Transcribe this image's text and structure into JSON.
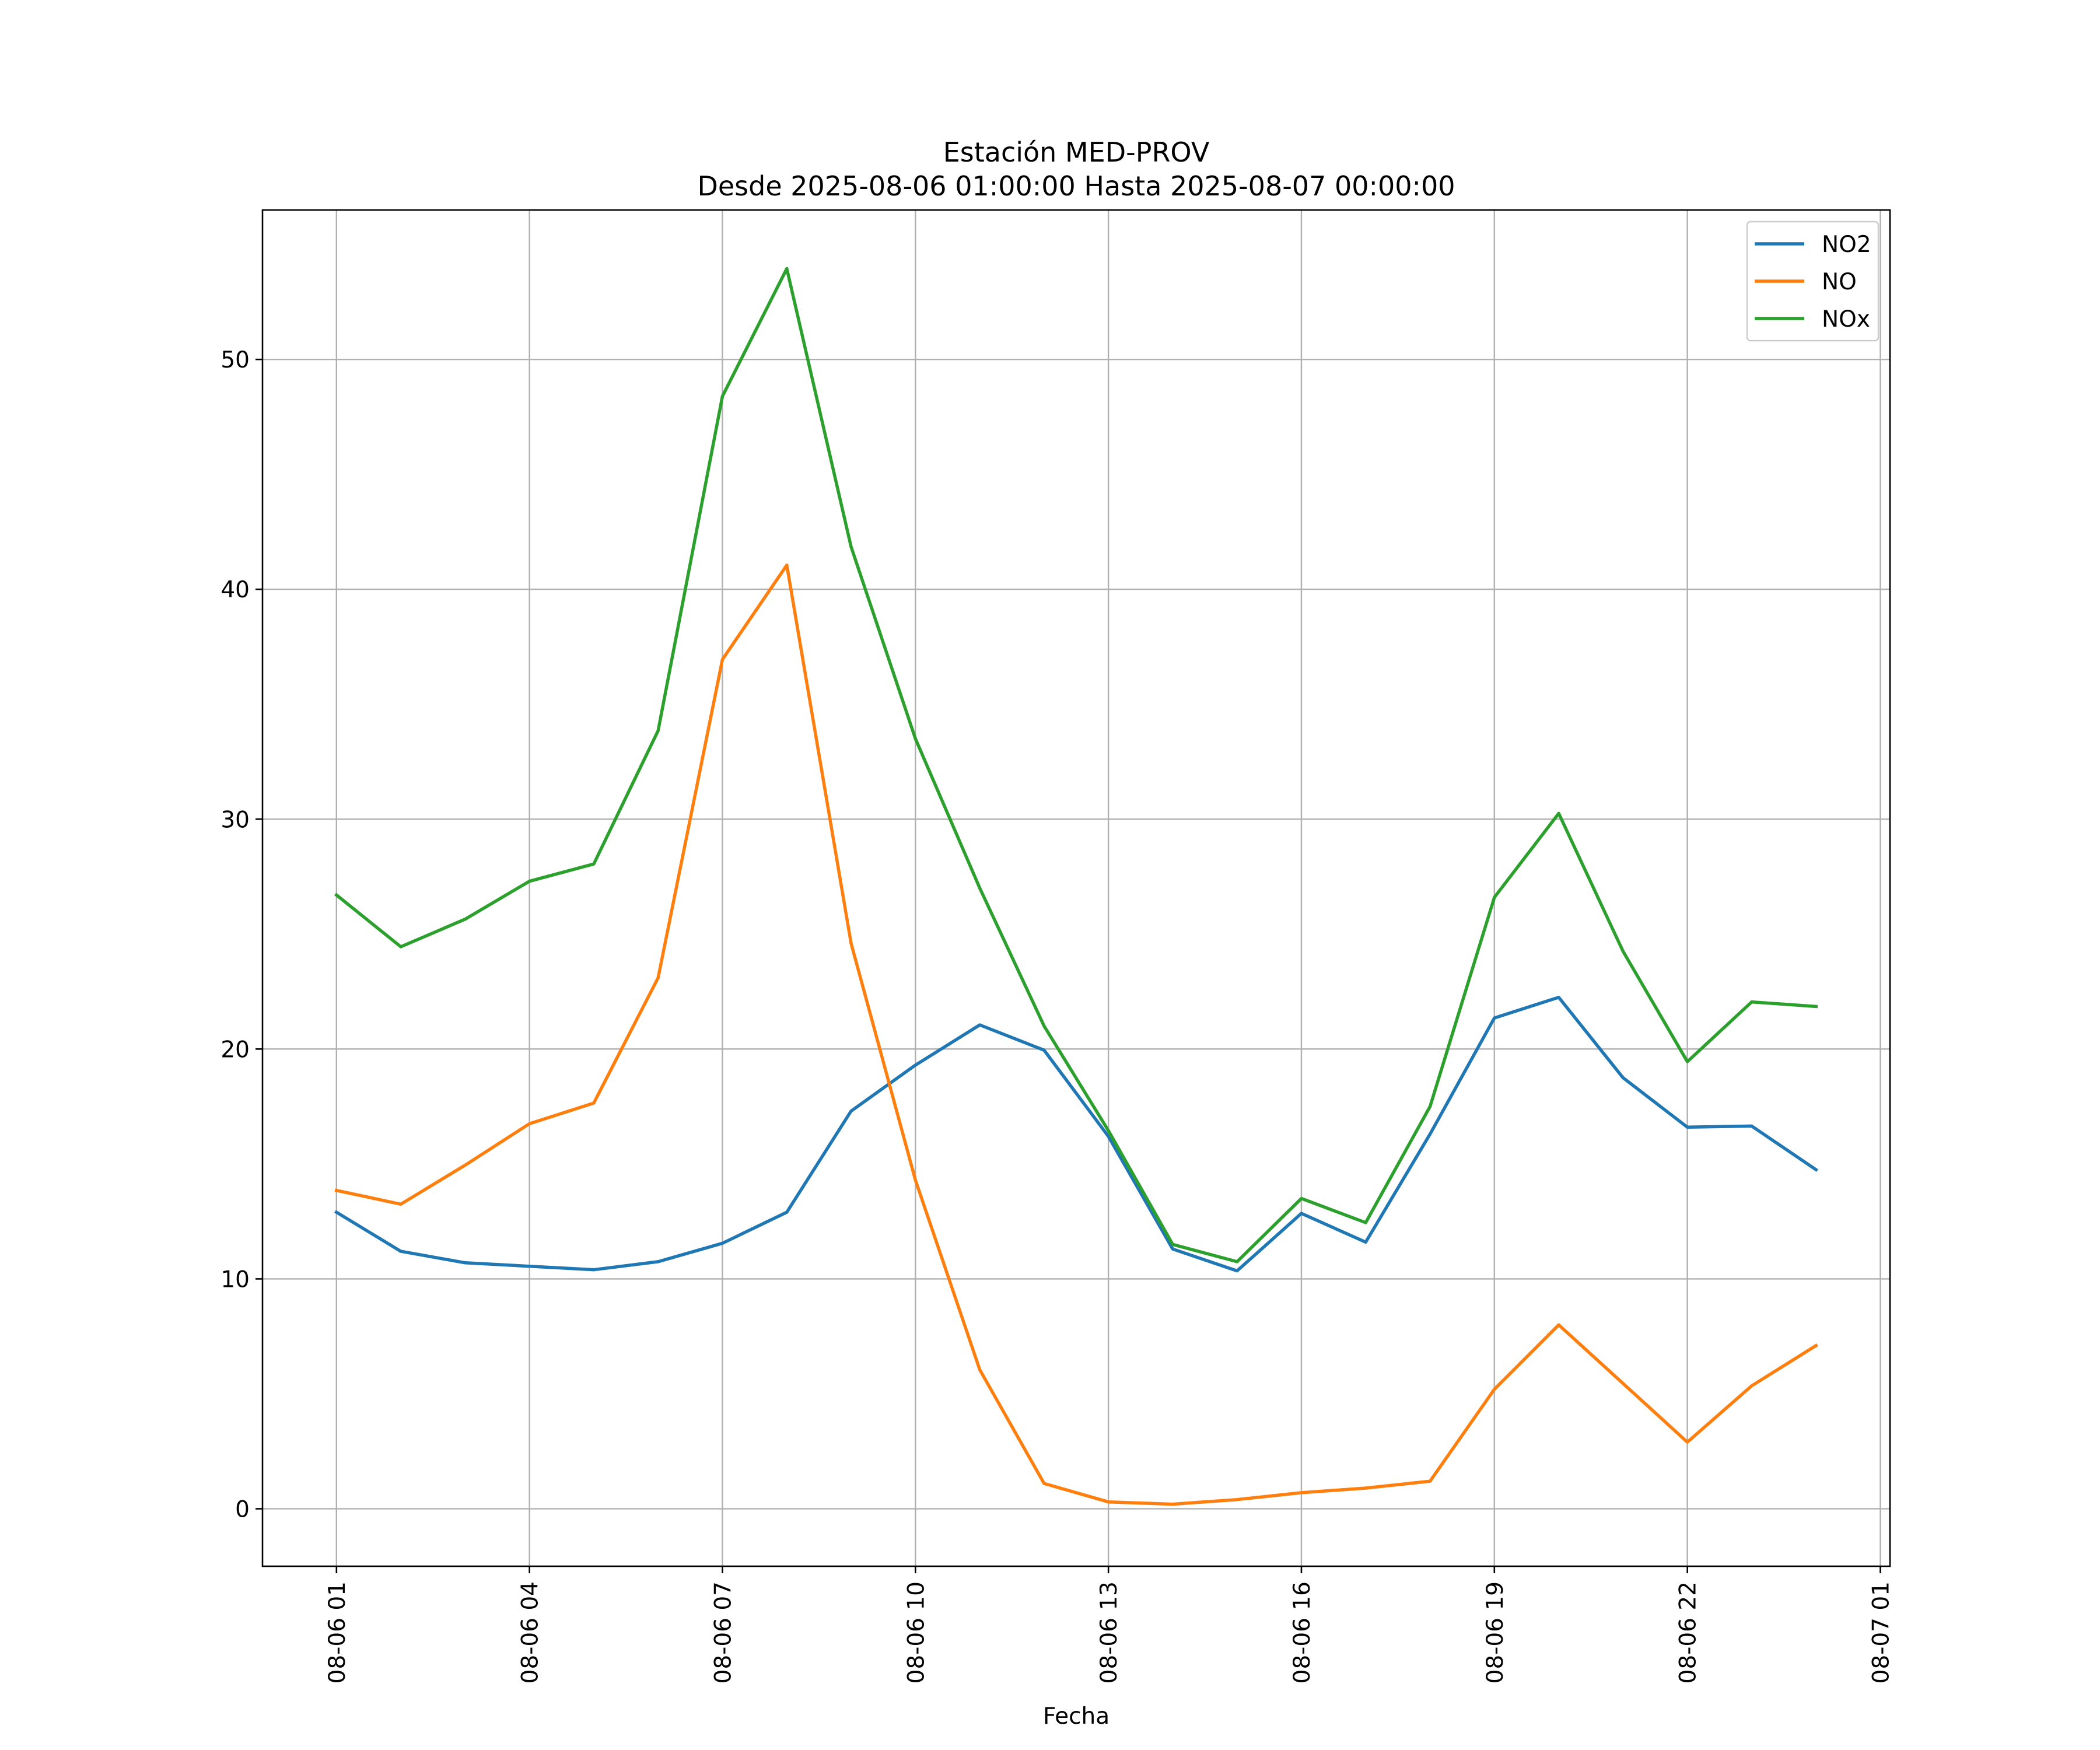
{
  "chart_data": {
    "type": "line",
    "title": "Estación MED-PROV",
    "subtitle": "Desde 2025-08-06 01:00:00 Hasta 2025-08-07 00:00:00",
    "xlabel": "Fecha",
    "ylabel": "",
    "x": [
      "08-06 01",
      "08-06 02",
      "08-06 03",
      "08-06 04",
      "08-06 05",
      "08-06 06",
      "08-06 07",
      "08-06 08",
      "08-06 09",
      "08-06 10",
      "08-06 11",
      "08-06 12",
      "08-06 13",
      "08-06 14",
      "08-06 15",
      "08-06 16",
      "08-06 17",
      "08-06 18",
      "08-06 19",
      "08-06 20",
      "08-06 21",
      "08-06 22",
      "08-06 23",
      "08-07 00"
    ],
    "x_hours": [
      1,
      2,
      3,
      4,
      5,
      6,
      7,
      8,
      9,
      10,
      11,
      12,
      13,
      14,
      15,
      16,
      17,
      18,
      19,
      20,
      21,
      22,
      23,
      24
    ],
    "xlim_hours": [
      -0.15,
      25.15
    ],
    "xticks": [
      {
        "hour": 1,
        "label": "08-06 01"
      },
      {
        "hour": 4,
        "label": "08-06 04"
      },
      {
        "hour": 7,
        "label": "08-06 07"
      },
      {
        "hour": 10,
        "label": "08-06 10"
      },
      {
        "hour": 13,
        "label": "08-06 13"
      },
      {
        "hour": 16,
        "label": "08-06 16"
      },
      {
        "hour": 19,
        "label": "08-06 19"
      },
      {
        "hour": 22,
        "label": "08-06 22"
      },
      {
        "hour": 25,
        "label": "08-07 01"
      }
    ],
    "ylim": [
      -2.5,
      56.5
    ],
    "yticks": [
      0,
      10,
      20,
      30,
      40,
      50
    ],
    "ytick_labels": [
      "0",
      "10",
      "20",
      "30",
      "40",
      "50"
    ],
    "grid": true,
    "legend_position": "top-right",
    "series": [
      {
        "name": "NO2",
        "color": "#1f77b4",
        "values": [
          12.9,
          11.2,
          10.7,
          10.55,
          10.4,
          10.75,
          11.55,
          12.9,
          17.3,
          19.3,
          21.05,
          19.95,
          16.2,
          11.3,
          10.35,
          12.85,
          11.6,
          16.3,
          21.35,
          22.25,
          18.75,
          16.6,
          16.65,
          14.75
        ]
      },
      {
        "name": "NO",
        "color": "#ff7f0e",
        "values": [
          13.85,
          13.25,
          14.95,
          16.75,
          17.65,
          23.1,
          36.95,
          41.05,
          24.6,
          14.3,
          6.05,
          1.1,
          0.3,
          0.2,
          0.4,
          0.7,
          0.9,
          1.2,
          5.2,
          8.0,
          5.45,
          2.9,
          5.35,
          7.1
        ]
      },
      {
        "name": "NOx",
        "color": "#2ca02c",
        "values": [
          26.7,
          24.45,
          25.65,
          27.3,
          28.05,
          33.85,
          48.4,
          53.95,
          41.85,
          33.5,
          27.0,
          21.0,
          16.45,
          11.5,
          10.75,
          13.5,
          12.45,
          17.5,
          26.6,
          30.25,
          24.25,
          19.45,
          22.05,
          21.85
        ]
      }
    ]
  }
}
